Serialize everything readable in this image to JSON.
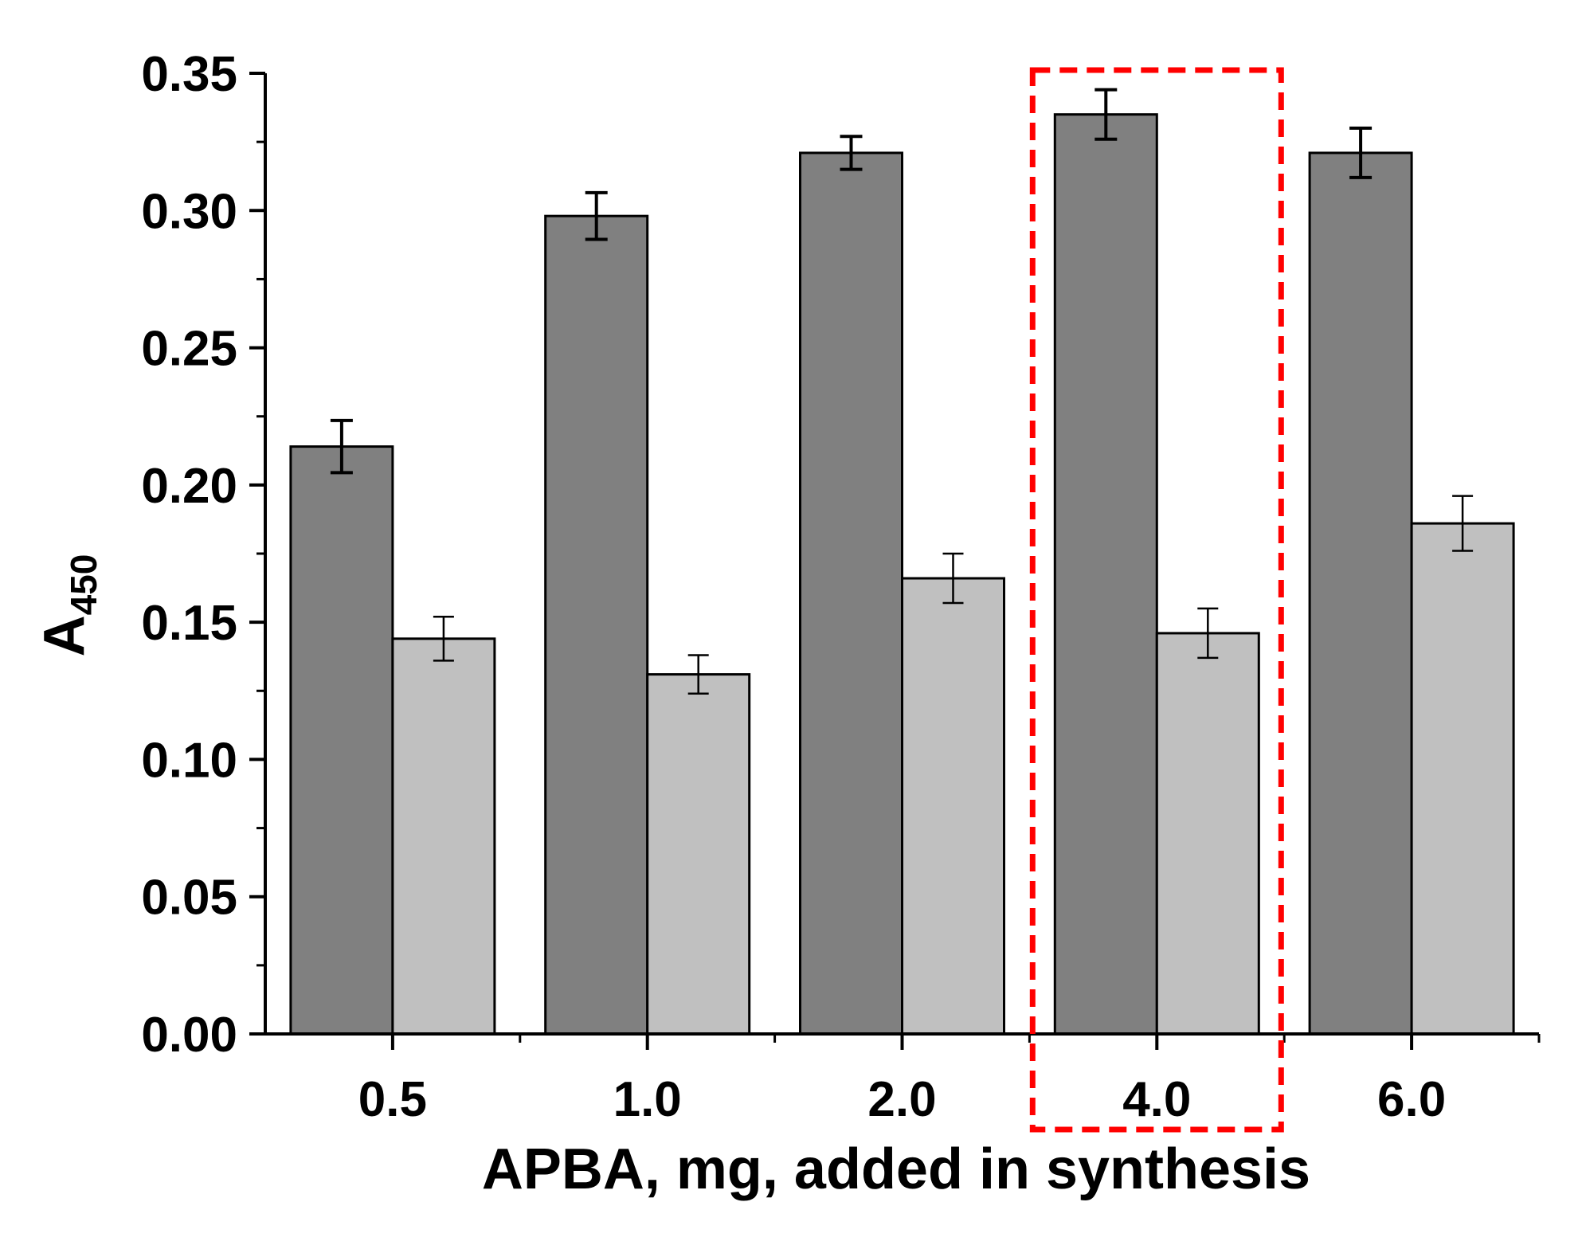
{
  "chart_data": {
    "type": "bar",
    "title": "",
    "xlabel": "APBA, mg, added in synthesis",
    "ylabel_main": "A",
    "ylabel_sub": "450",
    "categories": [
      "0.5",
      "1.0",
      "2.0",
      "4.0",
      "6.0"
    ],
    "ylim": [
      0,
      0.35
    ],
    "yticks": [
      "0.00",
      "0.05",
      "0.10",
      "0.15",
      "0.20",
      "0.25",
      "0.30",
      "0.35"
    ],
    "series": [
      {
        "name": "series-dark",
        "color": "#808080",
        "values": [
          0.214,
          0.298,
          0.321,
          0.335,
          0.321
        ],
        "errors": [
          0.0095,
          0.0085,
          0.006,
          0.009,
          0.009
        ]
      },
      {
        "name": "series-light",
        "color": "#c0c0c0",
        "values": [
          0.144,
          0.131,
          0.166,
          0.146,
          0.186
        ],
        "errors": [
          0.008,
          0.007,
          0.009,
          0.009,
          0.01
        ]
      }
    ],
    "highlight": {
      "category": "4.0",
      "color": "#ff0000",
      "style": "dashed"
    },
    "grid": false,
    "legend": "none"
  }
}
